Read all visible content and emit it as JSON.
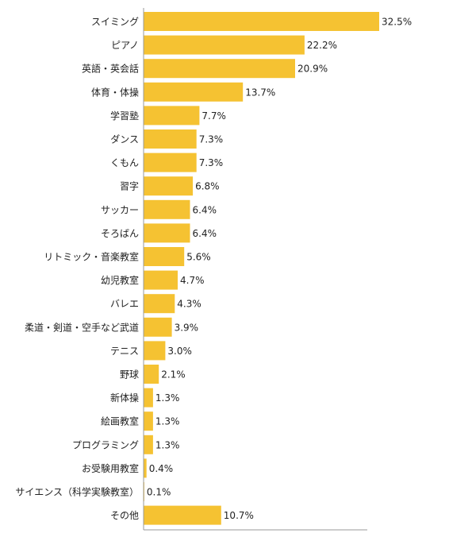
{
  "chart_data": {
    "type": "bar",
    "orientation": "horizontal",
    "categories": [
      "スイミング",
      "ピアノ",
      "英語・英会話",
      "体育・体操",
      "学習塾",
      "ダンス",
      "くもん",
      "習字",
      "サッカー",
      "そろばん",
      "リトミック・音楽教室",
      "幼児教室",
      "バレエ",
      "柔道・剣道・空手など武道",
      "テニス",
      "野球",
      "新体操",
      "絵画教室",
      "プログラミング",
      "お受験用教室",
      "サイエンス（科学実験教室）",
      "その他"
    ],
    "values": [
      32.5,
      22.2,
      20.9,
      13.7,
      7.7,
      7.3,
      7.3,
      6.8,
      6.4,
      6.4,
      5.6,
      4.7,
      4.3,
      3.9,
      3.0,
      2.1,
      1.3,
      1.3,
      1.3,
      0.4,
      0.1,
      10.7
    ],
    "value_labels": [
      "32.5%",
      "22.2%",
      "20.9%",
      "13.7%",
      "7.7%",
      "7.3%",
      "7.3%",
      "6.8%",
      "6.4%",
      "6.4%",
      "5.6%",
      "4.7%",
      "4.3%",
      "3.9%",
      "3.0%",
      "2.1%",
      "1.3%",
      "1.3%",
      "1.3%",
      "0.4%",
      "0.1%",
      "10.7%"
    ],
    "xlim": [
      0,
      32.5
    ],
    "grid": false,
    "legend": "none",
    "bar_color": "#f5c232",
    "axis_color": "#999999"
  }
}
